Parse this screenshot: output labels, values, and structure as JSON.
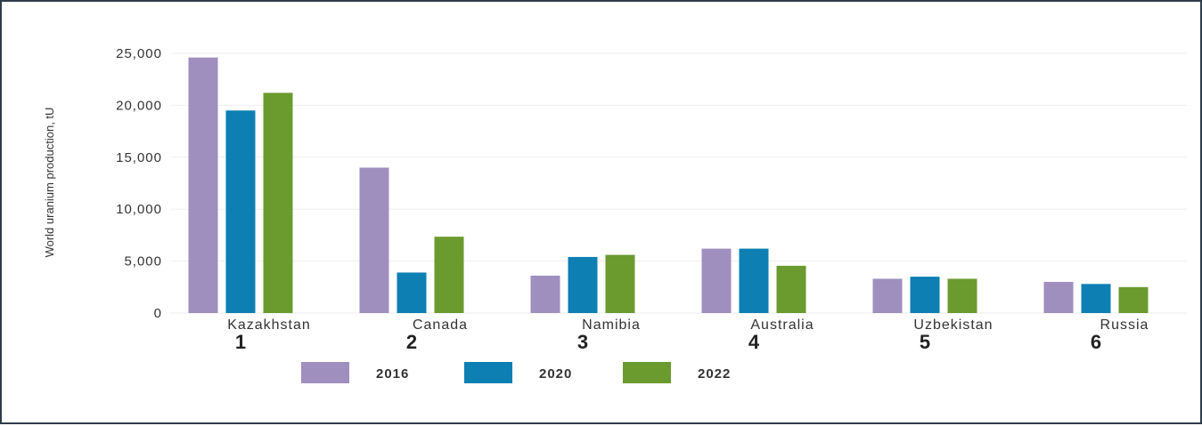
{
  "chart_data": {
    "type": "bar",
    "ylabel": "World uranium production, tU",
    "ylim": [
      0,
      25000
    ],
    "yticks": [
      0,
      5000,
      10000,
      15000,
      20000,
      25000
    ],
    "ytick_labels": [
      "0",
      "5,000",
      "10,000",
      "15,000",
      "20,000",
      "25,000"
    ],
    "grid": true,
    "legend_position": "bottom",
    "categories": [
      "Kazakhstan",
      "Canada",
      "Namibia",
      "Australia",
      "Uzbekistan",
      "Russia"
    ],
    "ranks": [
      "1",
      "2",
      "3",
      "4",
      "5",
      "6"
    ],
    "series": [
      {
        "name": "2016",
        "color": "#9e8fbf",
        "values": [
          24600,
          14000,
          3600,
          6200,
          3300,
          3000
        ]
      },
      {
        "name": "2020",
        "color": "#0d7fb3",
        "values": [
          19500,
          3900,
          5400,
          6200,
          3500,
          2800
        ]
      },
      {
        "name": "2022",
        "color": "#6b9a2f",
        "values": [
          21200,
          7350,
          5600,
          4550,
          3300,
          2500
        ]
      }
    ]
  }
}
